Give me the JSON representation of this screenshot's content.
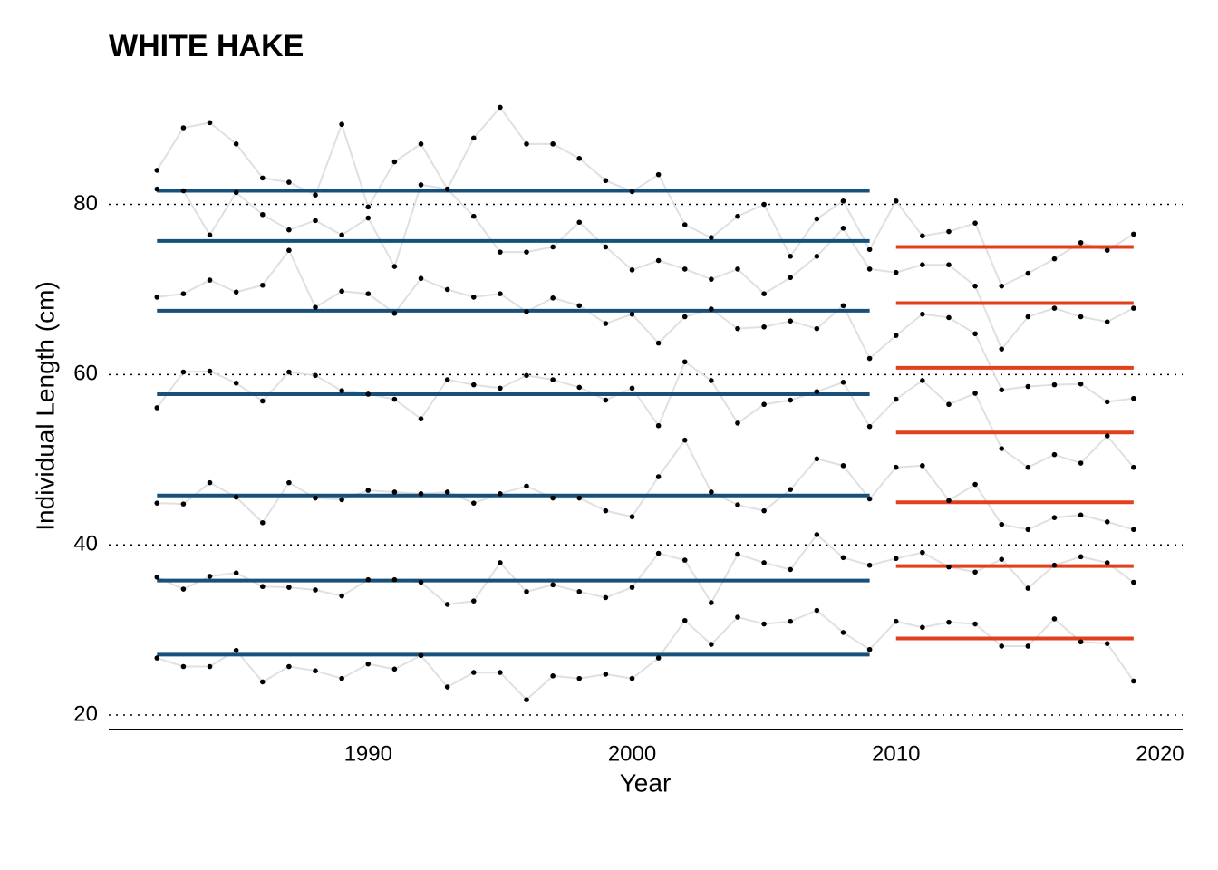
{
  "chart_data": {
    "type": "line",
    "title": "WHITE HAKE",
    "x_label": "Year",
    "y_label": "Individual Length (cm)",
    "x": [
      1982,
      1983,
      1984,
      1985,
      1986,
      1987,
      1988,
      1989,
      1990,
      1991,
      1992,
      1993,
      1994,
      1995,
      1996,
      1997,
      1998,
      1999,
      2000,
      2001,
      2002,
      2003,
      2004,
      2005,
      2006,
      2007,
      2008,
      2009,
      2010,
      2011,
      2012,
      2013,
      2014,
      2015,
      2016,
      2017,
      2018,
      2019
    ],
    "line_color": "#e0e0e0",
    "point_color": "#000000",
    "series": [
      {
        "values": [
          84.0,
          89.0,
          89.6,
          87.1,
          83.1,
          82.6,
          81.1,
          89.4,
          79.7,
          85.0,
          87.1,
          81.8,
          87.8,
          91.4,
          87.1,
          87.1,
          85.4,
          82.8,
          81.5,
          83.5,
          77.6,
          76.1,
          78.6,
          80.0,
          73.9,
          78.3,
          80.4,
          74.7,
          80.4,
          76.3,
          76.8,
          77.8,
          70.4,
          71.9,
          73.6,
          75.5,
          74.6,
          76.5
        ]
      },
      {
        "values": [
          81.8,
          81.6,
          76.4,
          81.4,
          78.8,
          77.0,
          78.1,
          76.4,
          78.4,
          72.7,
          82.3,
          81.8,
          78.6,
          74.4,
          74.4,
          75.0,
          77.9,
          75.0,
          72.3,
          73.4,
          72.4,
          71.2,
          72.4,
          69.5,
          71.4,
          73.9,
          77.2,
          72.4,
          72.0,
          72.9,
          72.9,
          70.4,
          63.0,
          66.8,
          67.8,
          66.8,
          66.2,
          67.8
        ]
      },
      {
        "values": [
          69.1,
          69.5,
          71.1,
          69.7,
          70.5,
          74.6,
          67.9,
          69.8,
          69.5,
          67.2,
          71.3,
          70.0,
          69.1,
          69.5,
          67.4,
          69.0,
          68.1,
          66.0,
          67.1,
          63.7,
          66.8,
          67.7,
          65.4,
          65.6,
          66.3,
          65.4,
          68.1,
          61.9,
          64.6,
          67.1,
          66.7,
          64.8,
          58.2,
          58.6,
          58.8,
          58.9,
          56.8,
          57.2
        ]
      },
      {
        "values": [
          56.1,
          60.3,
          60.4,
          59.0,
          56.9,
          60.3,
          59.9,
          58.1,
          57.7,
          57.1,
          54.8,
          59.4,
          58.8,
          58.4,
          59.9,
          59.4,
          58.5,
          57.0,
          58.4,
          54.0,
          61.5,
          59.3,
          54.3,
          56.5,
          57.0,
          58.0,
          59.1,
          53.9,
          57.1,
          59.3,
          56.5,
          57.8,
          51.3,
          49.1,
          50.6,
          49.6,
          52.8,
          49.1
        ]
      },
      {
        "values": [
          44.9,
          44.8,
          47.3,
          45.6,
          42.6,
          47.3,
          45.5,
          45.3,
          46.4,
          46.2,
          46.0,
          46.2,
          44.9,
          46.0,
          46.9,
          45.5,
          45.5,
          44.0,
          43.3,
          48.0,
          52.3,
          46.2,
          44.7,
          44.0,
          46.5,
          50.1,
          49.3,
          45.4,
          49.1,
          49.3,
          45.2,
          47.1,
          42.4,
          41.8,
          43.2,
          43.5,
          42.7,
          41.8
        ]
      },
      {
        "values": [
          36.2,
          34.8,
          36.3,
          36.7,
          35.1,
          35.0,
          34.7,
          34.0,
          35.9,
          35.9,
          35.6,
          33.0,
          33.4,
          37.9,
          34.5,
          35.3,
          34.5,
          33.8,
          35.0,
          39.0,
          38.2,
          33.2,
          38.9,
          37.9,
          37.1,
          41.2,
          38.5,
          37.6,
          38.4,
          39.1,
          37.4,
          36.8,
          38.3,
          34.9,
          37.6,
          38.6,
          37.9,
          35.6
        ]
      },
      {
        "values": [
          26.7,
          25.7,
          25.7,
          27.6,
          23.9,
          25.7,
          25.2,
          24.3,
          26.0,
          25.4,
          27.0,
          23.3,
          25.0,
          25.0,
          21.8,
          24.6,
          24.3,
          24.8,
          24.3,
          26.7,
          31.1,
          28.3,
          31.5,
          30.7,
          31.0,
          32.3,
          29.7,
          27.7,
          31.0,
          30.3,
          30.9,
          30.7,
          28.1,
          28.1,
          31.3,
          28.6,
          28.4,
          24.0
        ]
      }
    ],
    "period_means": [
      {
        "start": 1982,
        "end": 2009,
        "color": "#17507a",
        "values": [
          81.6,
          75.7,
          67.5,
          57.7,
          45.8,
          35.8,
          27.1
        ]
      },
      {
        "start": 2010,
        "end": 2019,
        "color": "#e2401c",
        "values": [
          75.0,
          68.4,
          60.8,
          53.2,
          45.0,
          37.5,
          29.0
        ]
      }
    ],
    "xlim": [
      1980.17,
      2020.86
    ],
    "ylim": [
      18.3,
      92.3
    ],
    "xticks": [
      1990,
      2000,
      2010,
      2020
    ],
    "yticks": [
      20,
      40,
      60,
      80
    ],
    "grid": true
  }
}
